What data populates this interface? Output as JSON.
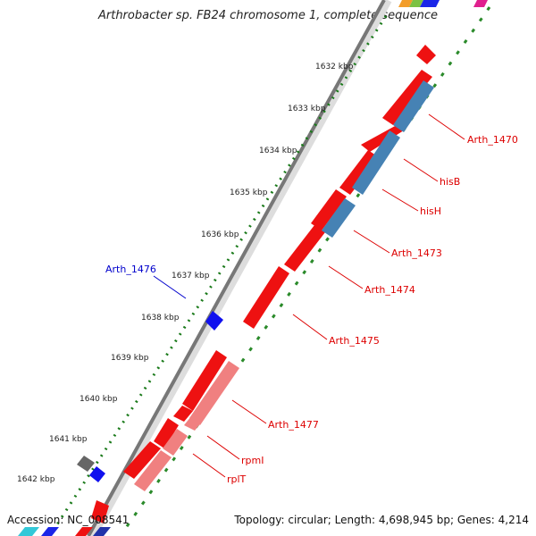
{
  "title": "Arthrobacter sp. FB24 chromosome 1, complete sequence",
  "footer": {
    "accession": "Accession: NC_008541",
    "summary": "Topology: circular; Length: 4,698,945 bp; Genes: 4,214"
  },
  "scale_labels": [
    {
      "text": "1632 kbp",
      "pos": 1632
    },
    {
      "text": "1633 kbp",
      "pos": 1633
    },
    {
      "text": "1634 kbp",
      "pos": 1634
    },
    {
      "text": "1635 kbp",
      "pos": 1635
    },
    {
      "text": "1636 kbp",
      "pos": 1636
    },
    {
      "text": "1637 kbp",
      "pos": 1637
    },
    {
      "text": "1638 kbp",
      "pos": 1638
    },
    {
      "text": "1639 kbp",
      "pos": 1639
    },
    {
      "text": "1640 kbp",
      "pos": 1640
    },
    {
      "text": "1641 kbp",
      "pos": 1641
    },
    {
      "text": "1642 kbp",
      "pos": 1642
    }
  ],
  "gene_labels": [
    {
      "text": "Arth_1470",
      "color": "#dd0000"
    },
    {
      "text": "hisB",
      "color": "#dd0000"
    },
    {
      "text": "hisH",
      "color": "#dd0000"
    },
    {
      "text": "Arth_1473",
      "color": "#dd0000"
    },
    {
      "text": "Arth_1474",
      "color": "#dd0000"
    },
    {
      "text": "Arth_1475",
      "color": "#dd0000"
    },
    {
      "text": "Arth_1476",
      "color": "#0000cc"
    },
    {
      "text": "Arth_1477",
      "color": "#dd0000"
    },
    {
      "text": "rpmI",
      "color": "#dd0000"
    },
    {
      "text": "rplT",
      "color": "#dd0000"
    }
  ],
  "colors": {
    "backbone": "#777777",
    "outer_dots": "#1a7a1a",
    "inner_dashes": "#2a8a2a",
    "cds_red": "#ee1111",
    "cds_pink": "#f08080",
    "cds_steelblue": "#4682b4",
    "cds_blue": "#1010ee",
    "cds_gray": "#666666"
  }
}
